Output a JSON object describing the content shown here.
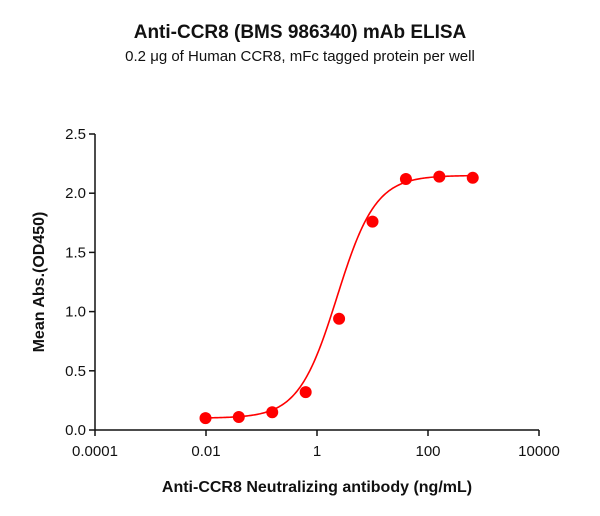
{
  "chart_data": {
    "type": "scatter",
    "title": "Anti-CCR8 (BMS 986340) mAb ELISA",
    "subtitle": "0.2 μg of Human CCR8, mFc tagged protein per well",
    "xlabel": "Anti-CCR8 Neutralizing antibody (ng/mL)",
    "ylabel": "Mean Abs.(OD450)",
    "xscale": "log",
    "xlim": [
      0.0001,
      10000
    ],
    "ylim": [
      0,
      2.5
    ],
    "x_ticks": [
      "0.0001",
      "0.01",
      "1",
      "100",
      "10000"
    ],
    "y_ticks": [
      "0.0",
      "0.5",
      "1.0",
      "1.5",
      "2.0",
      "2.5"
    ],
    "grid": false,
    "legend": null,
    "series": [
      {
        "name": "Anti-CCR8 (BMS 986340)",
        "color": "#ff0000",
        "fit": "4PL sigmoid curve",
        "x": [
          0.0098,
          0.039,
          0.156,
          0.625,
          2.5,
          10,
          40,
          160,
          640
        ],
        "values": [
          0.1,
          0.11,
          0.15,
          0.32,
          0.94,
          1.76,
          2.12,
          2.14,
          2.13
        ]
      }
    ]
  }
}
